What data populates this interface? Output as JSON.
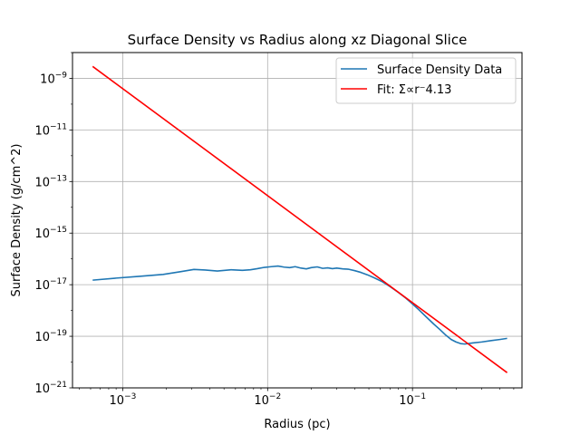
{
  "chart_data": {
    "type": "line",
    "title": "Surface Density vs Radius along xz Diagonal Slice",
    "xlabel": "Radius (pc)",
    "ylabel": "Surface Density (g/cm^2)",
    "x_scale": "log",
    "y_scale": "log",
    "xlim": [
      0.00045,
      0.57
    ],
    "ylim": [
      1e-21,
      1e-08
    ],
    "x_ticks": [
      {
        "value": 0.001,
        "base": "10",
        "exp": "−3"
      },
      {
        "value": 0.01,
        "base": "10",
        "exp": "−2"
      },
      {
        "value": 0.1,
        "base": "10",
        "exp": "−1"
      }
    ],
    "y_ticks": [
      {
        "value": 1e-21,
        "base": "10",
        "exp": "−21"
      },
      {
        "value": 1e-19,
        "base": "10",
        "exp": "−19"
      },
      {
        "value": 1e-17,
        "base": "10",
        "exp": "−17"
      },
      {
        "value": 1e-15,
        "base": "10",
        "exp": "−15"
      },
      {
        "value": 1e-13,
        "base": "10",
        "exp": "−13"
      },
      {
        "value": 1e-11,
        "base": "10",
        "exp": "−11"
      },
      {
        "value": 1e-09,
        "base": "10",
        "exp": "−9"
      }
    ],
    "grid": true,
    "legend_position": "top-right",
    "series": [
      {
        "name": "Surface Density Data",
        "color": "#1f77b4",
        "x": [
          0.00062,
          0.0009,
          0.0013,
          0.0019,
          0.0025,
          0.0031,
          0.0037,
          0.0045,
          0.0056,
          0.0067,
          0.0076,
          0.0085,
          0.0095,
          0.0106,
          0.0118,
          0.013,
          0.0142,
          0.0155,
          0.017,
          0.0185,
          0.02,
          0.022,
          0.024,
          0.026,
          0.028,
          0.03,
          0.033,
          0.036,
          0.04,
          0.044,
          0.049,
          0.055,
          0.062,
          0.07,
          0.08,
          0.09,
          0.1,
          0.11,
          0.125,
          0.14,
          0.155,
          0.17,
          0.185,
          0.2,
          0.215,
          0.23,
          0.26,
          0.3,
          0.35,
          0.4,
          0.45
        ],
        "y": [
          1.5e-17,
          1.8e-17,
          2.1e-17,
          2.5e-17,
          3.2e-17,
          3.9e-17,
          3.7e-17,
          3.4e-17,
          3.8e-17,
          3.6e-17,
          3.8e-17,
          4.2e-17,
          4.7e-17,
          5e-17,
          5.3e-17,
          4.8e-17,
          4.6e-17,
          5e-17,
          4.4e-17,
          4.1e-17,
          4.6e-17,
          4.9e-17,
          4.3e-17,
          4.5e-17,
          4.2e-17,
          4.4e-17,
          4.1e-17,
          4e-17,
          3.5e-17,
          3e-17,
          2.4e-17,
          1.8e-17,
          1.3e-17,
          8.5e-18,
          5e-18,
          3e-18,
          1.8e-18,
          1.1e-18,
          5.5e-19,
          3e-19,
          1.8e-19,
          1.1e-19,
          7.5e-20,
          6e-20,
          5.2e-20,
          5e-20,
          5.5e-20,
          6e-20,
          6.8e-20,
          7.5e-20,
          8.3e-20
        ]
      },
      {
        "name": "Fit: Σ∝r⁻4.13",
        "color": "#ff0000",
        "x": [
          0.00062,
          0.45
        ],
        "y": [
          2.9e-09,
          3.9e-21
        ]
      }
    ]
  }
}
